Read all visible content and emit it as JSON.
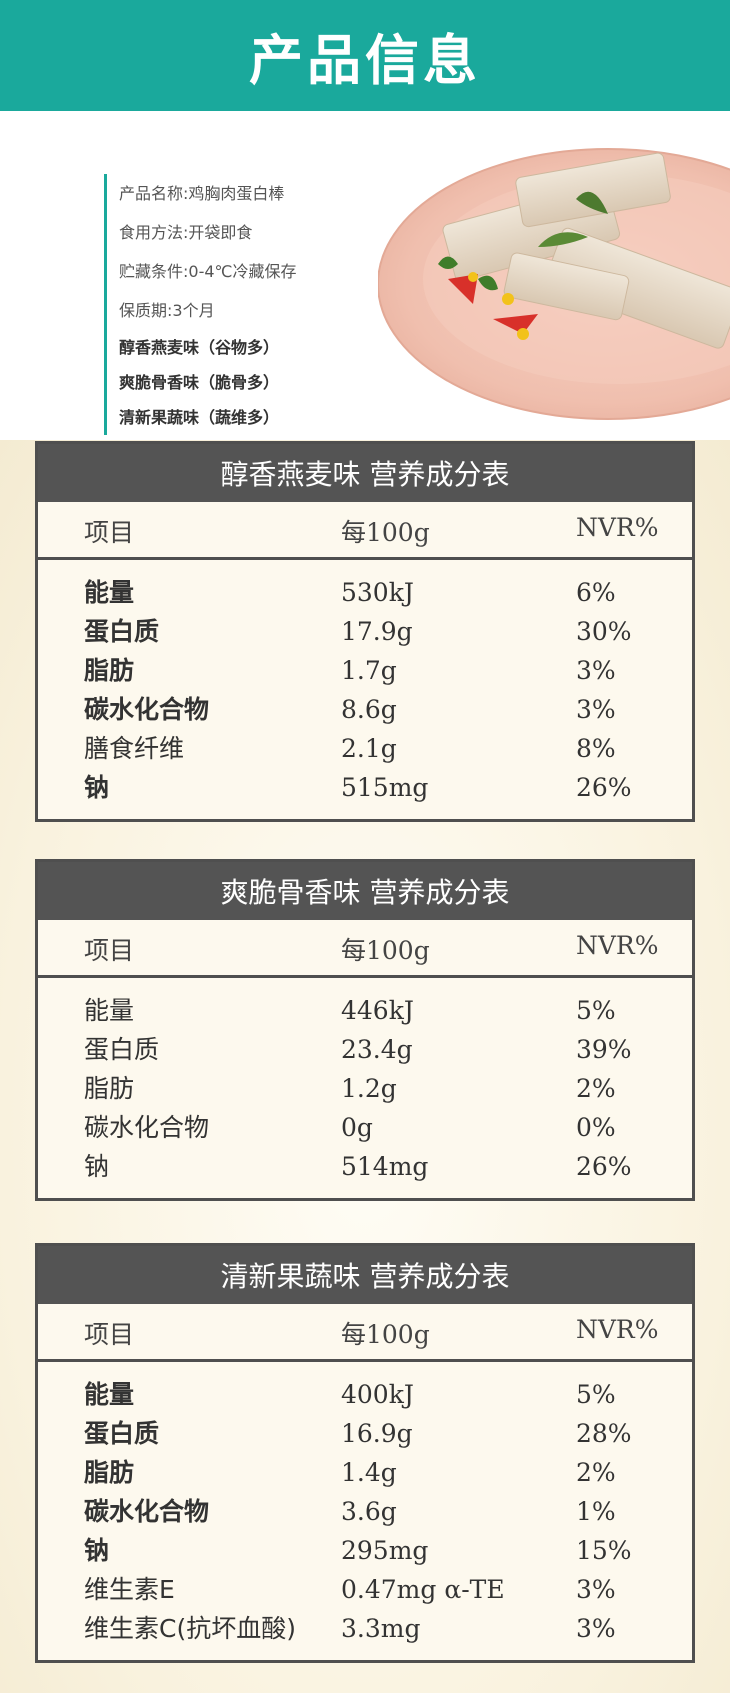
{
  "header": {
    "title": "产品信息"
  },
  "info": {
    "items": [
      {
        "text": "产品名称:鸡胸肉蛋白棒",
        "bold": false
      },
      {
        "text": "食用方法:开袋即食",
        "bold": false
      },
      {
        "text": "贮藏条件:0-4℃冷藏保存",
        "bold": false
      },
      {
        "text": "保质期:3个月",
        "bold": false
      },
      {
        "text": "醇香燕麦味（谷物多）",
        "bold": true
      },
      {
        "text": "爽脆骨香味（脆骨多）",
        "bold": true
      },
      {
        "text": "清新果蔬味（蔬维多）",
        "bold": true
      }
    ]
  },
  "colors": {
    "teal": "#1aa99c",
    "table_head": "#545454",
    "plate": "#f2c7b9"
  },
  "tables": [
    {
      "title": "醇香燕麦味  营养成分表",
      "col_item": "项目",
      "col_per": "每100g",
      "col_nvr": "NVR%",
      "rows": [
        {
          "name": "能量",
          "per": "530kJ",
          "nvr": "6%",
          "bold": true
        },
        {
          "name": "蛋白质",
          "per": "17.9g",
          "nvr": "30%",
          "bold": true
        },
        {
          "name": "脂肪",
          "per": "1.7g",
          "nvr": "3%",
          "bold": true
        },
        {
          "name": "碳水化合物",
          "per": "8.6g",
          "nvr": "3%",
          "bold": true
        },
        {
          "name": "膳食纤维",
          "per": "2.1g",
          "nvr": "8%",
          "bold": false
        },
        {
          "name": "钠",
          "per": "515mg",
          "nvr": "26%",
          "bold": true
        }
      ]
    },
    {
      "title": "爽脆骨香味  营养成分表",
      "col_item": "项目",
      "col_per": "每100g",
      "col_nvr": "NVR%",
      "rows": [
        {
          "name": "能量",
          "per": "446kJ",
          "nvr": "5%",
          "bold": false
        },
        {
          "name": "蛋白质",
          "per": "23.4g",
          "nvr": "39%",
          "bold": false
        },
        {
          "name": "脂肪",
          "per": "1.2g",
          "nvr": "2%",
          "bold": false
        },
        {
          "name": "碳水化合物",
          "per": "0g",
          "nvr": "0%",
          "bold": false
        },
        {
          "name": "钠",
          "per": "514mg",
          "nvr": "26%",
          "bold": false
        }
      ]
    },
    {
      "title": "清新果蔬味  营养成分表",
      "col_item": "项目",
      "col_per": "每100g",
      "col_nvr": "NVR%",
      "rows": [
        {
          "name": "能量",
          "per": "400kJ",
          "nvr": "5%",
          "bold": true
        },
        {
          "name": "蛋白质",
          "per": "16.9g",
          "nvr": "28%",
          "bold": true
        },
        {
          "name": "脂肪",
          "per": "1.4g",
          "nvr": "2%",
          "bold": true
        },
        {
          "name": "碳水化合物",
          "per": "3.6g",
          "nvr": "1%",
          "bold": true
        },
        {
          "name": "钠",
          "per": "295mg",
          "nvr": "15%",
          "bold": true
        },
        {
          "name": "维生素E",
          "per": "0.47mg α-TE",
          "nvr": "3%",
          "bold": false
        },
        {
          "name": "维生素C(抗坏血酸)",
          "per": "3.3mg",
          "nvr": "3%",
          "bold": false
        }
      ]
    }
  ]
}
